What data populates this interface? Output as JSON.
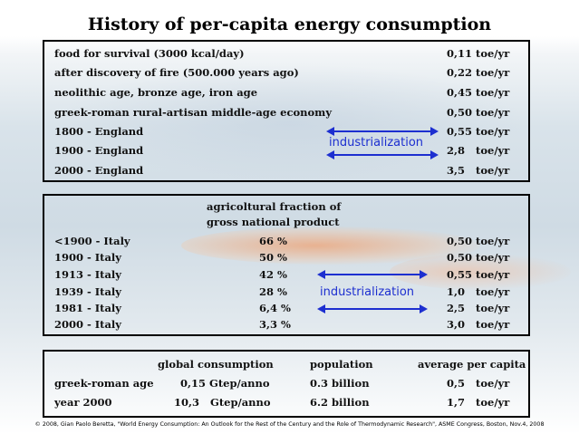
{
  "title": "History of per-capita energy consumption",
  "section1": {
    "rows": [
      {
        "label": "food for survival (3000 kcal/day)",
        "value": "0,11 toe/yr"
      },
      {
        "label": "after discovery of fire (500.000 years ago)",
        "value": "0,22 toe/yr"
      },
      {
        "label": "neolithic age, bronze age, iron age",
        "value": "0,45 toe/yr"
      },
      {
        "label": "greek-roman rural-artisan middle-age economy",
        "value": "0,50 toe/yr"
      },
      {
        "label": "1800 - England",
        "value": "0,55 toe/yr"
      },
      {
        "label": "1900 - England",
        "value": "2,8   toe/yr"
      },
      {
        "label": "2000 - England",
        "value": "3,5   toe/yr"
      }
    ],
    "industrialization": "industrialization",
    "arrow_color": "#1d2fd0"
  },
  "section2": {
    "header_line1": "agricoltural fraction of",
    "header_line2": "gross national product",
    "rows": [
      {
        "label": "<1900 - Italy",
        "fraction": "66 %",
        "value": "0,50 toe/yr"
      },
      {
        "label": "1900 - Italy",
        "fraction": "50 %",
        "value": "0,50 toe/yr"
      },
      {
        "label": "1913 - Italy",
        "fraction": "42 %",
        "value": "0,55 toe/yr"
      },
      {
        "label": "1939 - Italy",
        "fraction": "28 %",
        "value": "1,0   toe/yr"
      },
      {
        "label": "1981 - Italy",
        "fraction": "6,4 %",
        "value": "2,5   toe/yr"
      },
      {
        "label": "2000 - Italy",
        "fraction": "3,3 %",
        "value": "3,0   toe/yr"
      }
    ],
    "industrialization": "industrialization"
  },
  "section3": {
    "headers": {
      "global": "global consumption",
      "population": "population",
      "average": "average per capita"
    },
    "rows": [
      {
        "label": "greek-roman age",
        "global": "0,15 Gtep/anno",
        "population": "0.3 billion",
        "average": "0,5   toe/yr"
      },
      {
        "label": "year 2000",
        "global": "10,3   Gtep/anno",
        "population": "6.2 billion",
        "average": "1,7   toe/yr"
      }
    ]
  },
  "footer": "© 2008, Gian Paolo Beretta, \"World Energy Consumption: An Outlook for the Rest of the Century and the Role of Thermodynamic Research\", ASME Congress, Boston, Nov.4, 2008"
}
